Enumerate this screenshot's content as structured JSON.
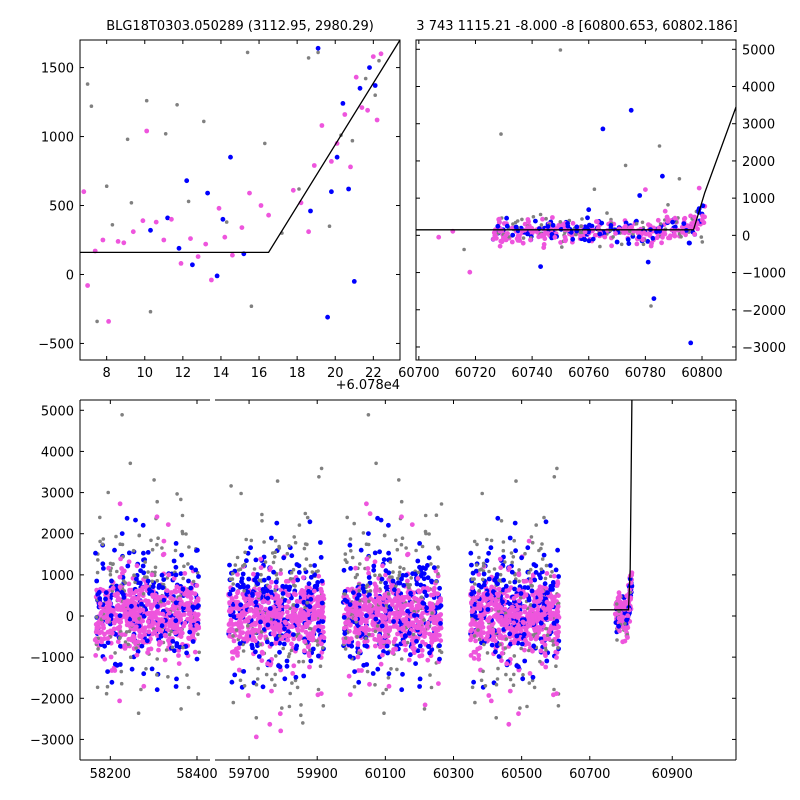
{
  "chart_data": [
    {
      "type": "scatter",
      "id": "top-left",
      "title": "BLG18T0303.050289 (3112.95, 2980.29)",
      "xlabel": "",
      "ylabel": "",
      "xlim": [
        6.6,
        23.4
      ],
      "ylim": [
        -620,
        1700
      ],
      "x_offset_label": "+6.078e4",
      "xticks": [
        8,
        10,
        12,
        14,
        16,
        18,
        20,
        22
      ],
      "yticks": [
        -500,
        0,
        500,
        1000,
        1500
      ],
      "grid": false,
      "colors": {
        "gray": "#808080",
        "blue": "#0000ff",
        "pink": "#ee55dd",
        "model": "#000000"
      },
      "model_line": {
        "x": [
          6.6,
          16.5,
          23.4
        ],
        "y": [
          160,
          160,
          1700
        ]
      },
      "series": [
        {
          "name": "gray",
          "points": [
            [
              7.0,
              1380
            ],
            [
              7.2,
              1220
            ],
            [
              7.5,
              -340
            ],
            [
              8.0,
              640
            ],
            [
              8.3,
              360
            ],
            [
              9.1,
              980
            ],
            [
              9.3,
              520
            ],
            [
              10.1,
              1260
            ],
            [
              10.3,
              -270
            ],
            [
              11.1,
              1020
            ],
            [
              11.7,
              1230
            ],
            [
              12.3,
              530
            ],
            [
              13.1,
              1110
            ],
            [
              14.3,
              380
            ],
            [
              15.4,
              1610
            ],
            [
              15.6,
              -230
            ],
            [
              16.3,
              950
            ],
            [
              17.2,
              300
            ],
            [
              18.1,
              620
            ],
            [
              18.6,
              1570
            ],
            [
              19.1,
              1610
            ],
            [
              19.7,
              350
            ],
            [
              20.3,
              1010
            ],
            [
              20.9,
              970
            ],
            [
              21.6,
              1420
            ],
            [
              22.1,
              1300
            ],
            [
              22.3,
              1550
            ]
          ]
        },
        {
          "name": "blue",
          "points": [
            [
              10.3,
              320
            ],
            [
              11.2,
              410
            ],
            [
              11.8,
              190
            ],
            [
              12.2,
              680
            ],
            [
              12.5,
              70
            ],
            [
              13.3,
              590
            ],
            [
              13.8,
              -10
            ],
            [
              14.1,
              400
            ],
            [
              14.5,
              850
            ],
            [
              15.2,
              150
            ],
            [
              18.7,
              460
            ],
            [
              19.1,
              1640
            ],
            [
              19.6,
              -310
            ],
            [
              19.8,
              600
            ],
            [
              20.1,
              850
            ],
            [
              20.4,
              1240
            ],
            [
              20.7,
              620
            ],
            [
              21.0,
              -50
            ],
            [
              21.3,
              1350
            ],
            [
              21.8,
              1500
            ],
            [
              22.1,
              1370
            ]
          ]
        },
        {
          "name": "pink",
          "points": [
            [
              6.8,
              600
            ],
            [
              7.0,
              -80
            ],
            [
              7.4,
              170
            ],
            [
              7.8,
              250
            ],
            [
              8.1,
              -340
            ],
            [
              8.6,
              240
            ],
            [
              8.9,
              230
            ],
            [
              9.4,
              310
            ],
            [
              9.9,
              390
            ],
            [
              10.1,
              1040
            ],
            [
              10.6,
              380
            ],
            [
              11.0,
              250
            ],
            [
              11.4,
              400
            ],
            [
              11.9,
              80
            ],
            [
              12.4,
              260
            ],
            [
              12.8,
              130
            ],
            [
              13.2,
              220
            ],
            [
              13.5,
              -40
            ],
            [
              13.9,
              480
            ],
            [
              14.2,
              270
            ],
            [
              14.6,
              140
            ],
            [
              15.1,
              340
            ],
            [
              15.5,
              590
            ],
            [
              16.1,
              500
            ],
            [
              16.5,
              430
            ],
            [
              17.8,
              610
            ],
            [
              18.2,
              520
            ],
            [
              18.6,
              310
            ],
            [
              18.9,
              790
            ],
            [
              19.3,
              1080
            ],
            [
              19.8,
              820
            ],
            [
              20.1,
              950
            ],
            [
              20.5,
              1160
            ],
            [
              20.8,
              780
            ],
            [
              21.1,
              1430
            ],
            [
              21.4,
              1210
            ],
            [
              21.7,
              1190
            ],
            [
              22.0,
              1580
            ],
            [
              22.2,
              1120
            ],
            [
              22.4,
              1600
            ]
          ]
        }
      ]
    },
    {
      "type": "scatter",
      "id": "top-right",
      "title": "3 743 1115.21 -8.000 -8 [60800.653, 60802.186]",
      "xlabel": "",
      "ylabel": "",
      "xlim": [
        60699,
        60812
      ],
      "ylim": [
        -3350,
        5250
      ],
      "xticks": [
        60700,
        60720,
        60740,
        60760,
        60780,
        60800
      ],
      "yticks": [
        -3000,
        -2000,
        -1000,
        0,
        1000,
        2000,
        3000,
        4000,
        5000
      ],
      "grid": false,
      "model_line": {
        "x": [
          60699,
          60797,
          60801,
          60812
        ],
        "y": [
          150,
          150,
          1150,
          3450
        ]
      },
      "series": [
        {
          "name": "gray",
          "points": [
            [
              60716,
              -380
            ],
            [
              60729,
              2720
            ],
            [
              60735,
              170
            ],
            [
              60743,
              560
            ],
            [
              60750,
              4980
            ],
            [
              60755,
              190
            ],
            [
              60762,
              1240
            ],
            [
              60768,
              220
            ],
            [
              60773,
              1880
            ],
            [
              60779,
              350
            ],
            [
              60782,
              -1900
            ],
            [
              60785,
              2400
            ],
            [
              60788,
              820
            ],
            [
              60792,
              1520
            ],
            [
              60798,
              640
            ]
          ]
        },
        {
          "name": "blue",
          "points": [
            [
              60731,
              460
            ],
            [
              60743,
              -840
            ],
            [
              60752,
              350
            ],
            [
              60760,
              690
            ],
            [
              60765,
              2860
            ],
            [
              60770,
              -180
            ],
            [
              60775,
              3360
            ],
            [
              60778,
              1070
            ],
            [
              60781,
              -720
            ],
            [
              60783,
              -1700
            ],
            [
              60786,
              1590
            ],
            [
              60790,
              200
            ],
            [
              60796,
              -2890
            ],
            [
              60799,
              720
            ]
          ]
        },
        {
          "name": "pink",
          "points": [
            [
              60707,
              -50
            ],
            [
              60712,
              110
            ],
            [
              60718,
              -990
            ],
            [
              60727,
              150
            ],
            [
              60733,
              -180
            ],
            [
              60739,
              260
            ],
            [
              60746,
              30
            ],
            [
              60751,
              290
            ],
            [
              60757,
              -90
            ],
            [
              60763,
              210
            ],
            [
              60768,
              -70
            ],
            [
              60772,
              180
            ],
            [
              60777,
              -230
            ],
            [
              60780,
              1230
            ],
            [
              60784,
              80
            ],
            [
              60787,
              650
            ],
            [
              60791,
              350
            ],
            [
              60795,
              230
            ],
            [
              60799,
              1270
            ],
            [
              60801,
              780
            ]
          ]
        }
      ]
    },
    {
      "type": "scatter",
      "id": "bottom",
      "title": "",
      "xlabel": "",
      "ylabel": "",
      "ylim": [
        -3500,
        5250
      ],
      "yticks": [
        -3000,
        -2000,
        -1000,
        0,
        1000,
        2000,
        3000,
        4000,
        5000
      ],
      "grid": false,
      "segments": [
        {
          "xlim": [
            58130,
            58430
          ],
          "xticks": [
            58200,
            58400
          ],
          "xtick_labels": [
            "58200",
            "58400"
          ]
        },
        {
          "xlim": [
            59600,
            60730
          ],
          "xticks": [
            59700,
            59900,
            60100,
            60300,
            60500,
            60700
          ],
          "xtick_labels": [
            "59700",
            "59900",
            "60100",
            "60300",
            "60500",
            "60700"
          ]
        },
        {
          "xlim": [
            60730,
            61050
          ],
          "xticks": [
            60900
          ],
          "xtick_labels": [
            "60900"
          ]
        }
      ],
      "seasons": [
        {
          "center": 58285,
          "halfwidth": 120
        },
        {
          "center": 59780,
          "halfwidth": 140
        },
        {
          "center": 60120,
          "halfwidth": 145
        },
        {
          "center": 60480,
          "halfwidth": 130
        },
        {
          "center": 60785,
          "halfwidth": 20
        }
      ],
      "model_line": {
        "x": [
          60700,
          60797,
          60801,
          60805
        ],
        "y": [
          150,
          150,
          1150,
          5250
        ]
      }
    }
  ]
}
